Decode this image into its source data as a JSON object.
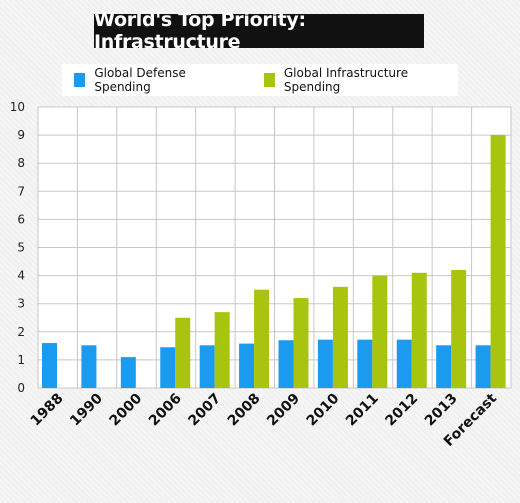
{
  "title": "World's Top Priority: Infrastructure",
  "legend": {
    "defense": "Global Defense Spending",
    "infrastructure": "Global Infrastructure Spending"
  },
  "colors": {
    "defense": "#1a9bf0",
    "infrastructure": "#a8c40e",
    "grid": "#c8c8c8"
  },
  "chart_data": {
    "type": "bar",
    "title": "World's Top Priority: Infrastructure",
    "categories": [
      "1988",
      "1990",
      "2000",
      "2006",
      "2007",
      "2008",
      "2009",
      "2010",
      "2011",
      "2012",
      "2013",
      "Forecast"
    ],
    "series": [
      {
        "name": "Global Defense Spending",
        "values": [
          1.6,
          1.52,
          1.1,
          1.45,
          1.52,
          1.58,
          1.7,
          1.72,
          1.72,
          1.72,
          1.52,
          1.52
        ]
      },
      {
        "name": "Global Infrastructure Spending",
        "values": [
          null,
          null,
          null,
          2.5,
          2.7,
          3.5,
          3.2,
          3.6,
          4.0,
          4.1,
          4.2,
          9.0
        ]
      }
    ],
    "yticks": [
      0,
      1,
      2,
      3,
      4,
      5,
      6,
      7,
      8,
      9,
      10
    ],
    "ylim": [
      0,
      10
    ],
    "grid": true,
    "legend_position": "top"
  }
}
